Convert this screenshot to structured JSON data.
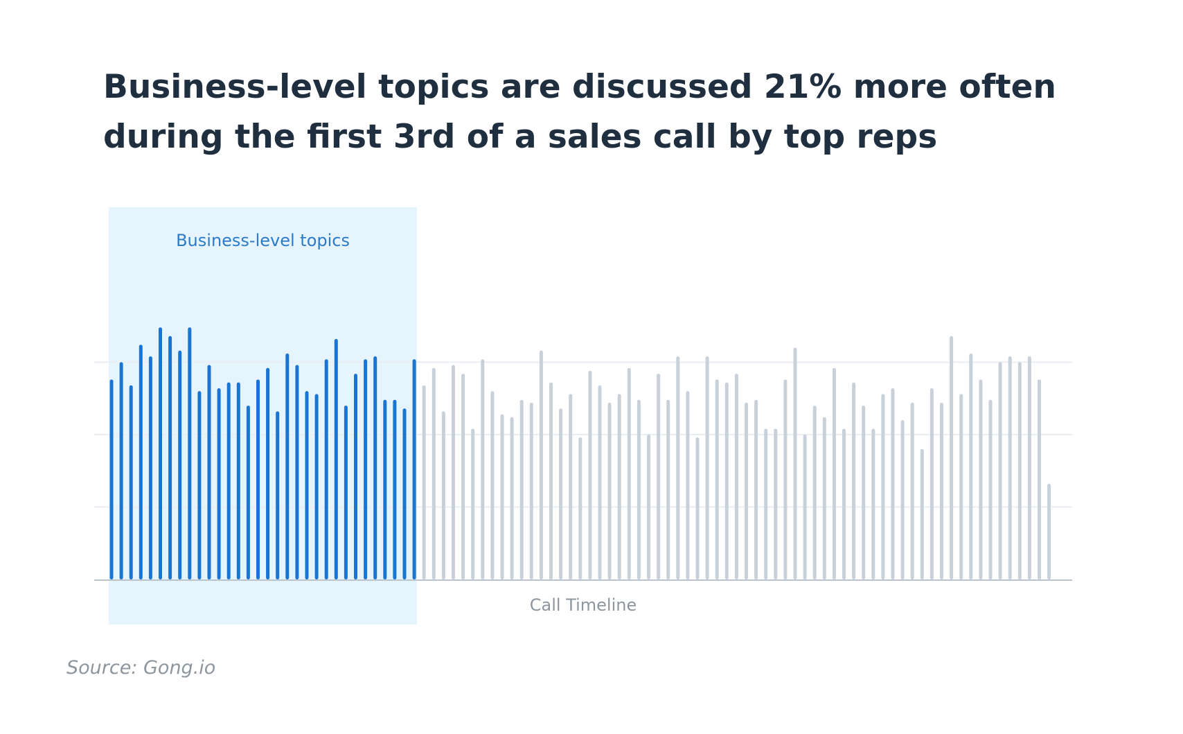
{
  "title_lines": [
    "Business-level topics are discussed 21% more often",
    "during the first 3rd of a sales call by top reps"
  ],
  "source": "Source: Gong.io",
  "colors": {
    "highlight_bar": "#1a74d2",
    "other_bar": "#c8d0da",
    "highlight_band": "#e6f4fd",
    "gridline": "#e9eef3",
    "axis": "#b9c3ce",
    "title": "#1f2f3f",
    "band_label": "#2b7bc8",
    "xlabel": "#8d969f"
  },
  "chart_data": {
    "type": "bar",
    "title": "Business-level topics are discussed 21% more often during the first 3rd of a sales call by top reps",
    "xlabel": "Call Timeline",
    "ylabel": "",
    "highlight_label": "Business-level topics",
    "highlight_count": 32,
    "ylim": [
      0,
      100
    ],
    "grid": true,
    "gridlines": [
      25,
      50,
      75
    ],
    "values": [
      69,
      75,
      67,
      81,
      77,
      87,
      84,
      79,
      87,
      65,
      74,
      66,
      68,
      68,
      60,
      69,
      73,
      58,
      78,
      74,
      65,
      64,
      76,
      83,
      60,
      71,
      76,
      77,
      62,
      62,
      59,
      76,
      67,
      73,
      58,
      74,
      71,
      52,
      76,
      65,
      57,
      56,
      62,
      61,
      79,
      68,
      59,
      64,
      49,
      72,
      67,
      61,
      64,
      73,
      62,
      50,
      71,
      62,
      77,
      65,
      49,
      77,
      69,
      68,
      71,
      61,
      62,
      52,
      52,
      69,
      80,
      50,
      60,
      56,
      73,
      52,
      68,
      60,
      52,
      64,
      66,
      55,
      61,
      45,
      66,
      61,
      84,
      64,
      78,
      69,
      62,
      75,
      77,
      75,
      77,
      69,
      33
    ]
  }
}
